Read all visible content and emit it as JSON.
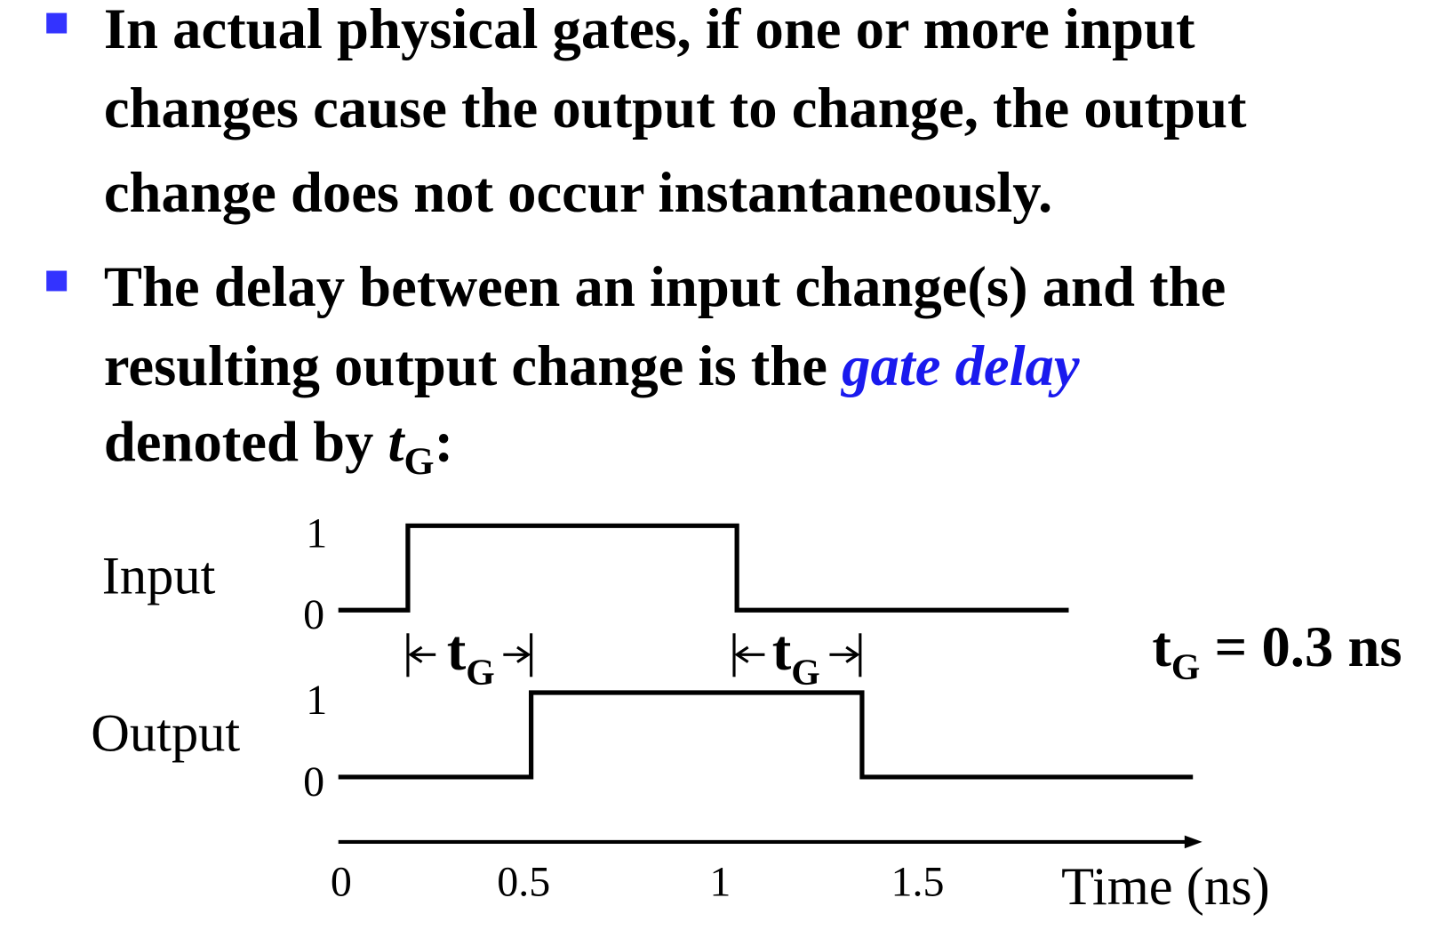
{
  "bullets": [
    {
      "lines": [
        "In actual physical gates, if one or more input",
        "changes cause the output to change, the output",
        "change does not occur instantaneously."
      ]
    },
    {
      "lines": [
        "The delay between an input change(s) and the"
      ],
      "line2": {
        "text": "resulting output change is the ",
        "term": "gate delay"
      },
      "line3": {
        "text": "denoted by ",
        "symbol": "t",
        "subscript": "G",
        "end": ":"
      }
    }
  ],
  "diagram": {
    "signals": [
      "Input",
      "Output"
    ],
    "levels": {
      "high": "1",
      "low": "0"
    },
    "delay_label": {
      "symbol": "t",
      "subscript": "G"
    },
    "equation": {
      "symbol": "t",
      "subscript": "G",
      "rest": " = 0.3 ns"
    },
    "axis_ticks": [
      "0",
      "0.5",
      "1",
      "1.5"
    ],
    "axis_label": "Time (ns)"
  }
}
